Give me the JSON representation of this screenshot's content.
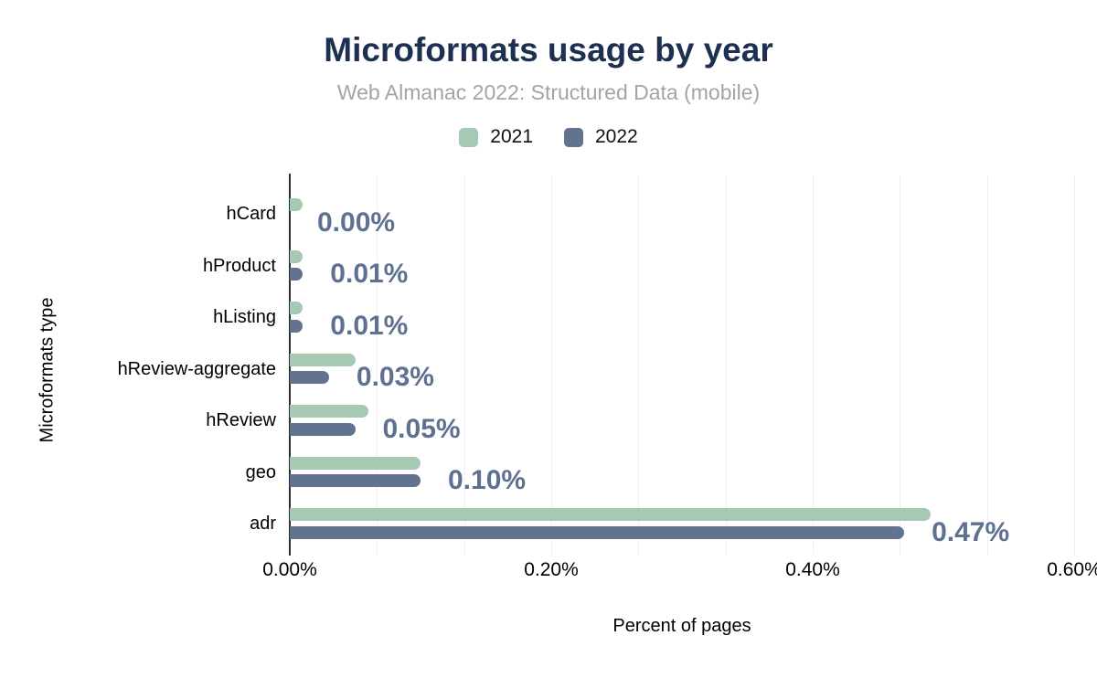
{
  "title": "Microformats usage by year",
  "subtitle": "Web Almanac 2022: Structured Data (mobile)",
  "legend": {
    "items": [
      {
        "label": "2021",
        "color": "#a6c9b4"
      },
      {
        "label": "2022",
        "color": "#62738f"
      }
    ]
  },
  "chart_data": {
    "type": "bar",
    "orientation": "horizontal",
    "title": "Microformats usage by year",
    "subtitle": "Web Almanac 2022: Structured Data (mobile)",
    "categories": [
      "hCard",
      "hProduct",
      "hListing",
      "hReview-aggregate",
      "hReview",
      "geo",
      "adr"
    ],
    "series": [
      {
        "name": "2021",
        "color": "#a6c9b4",
        "values": [
          0.01,
          0.01,
          0.01,
          0.05,
          0.06,
          0.1,
          0.49
        ]
      },
      {
        "name": "2022",
        "color": "#62738f",
        "values": [
          0.0,
          0.01,
          0.01,
          0.03,
          0.05,
          0.1,
          0.47
        ]
      }
    ],
    "data_labels": {
      "series": "2022",
      "values": [
        "0.00%",
        "0.01%",
        "0.01%",
        "0.03%",
        "0.05%",
        "0.10%",
        "0.47%"
      ],
      "color": "#5e7191"
    },
    "xlabel": "Percent of pages",
    "ylabel": "Microformats type",
    "x_ticks": {
      "labels": [
        "0.00%",
        "0.20%",
        "0.40%",
        "0.60%"
      ],
      "values": [
        0,
        0.2,
        0.4,
        0.6
      ]
    },
    "xlim": [
      0,
      0.6
    ],
    "grid": {
      "vertical_minor_intervals": 9,
      "color": "#efefef"
    },
    "legend_position": "top"
  },
  "colors": {
    "background": "#ffffff",
    "title": "#1e3051",
    "subtitle": "#a4a4a4",
    "axis_line": "#2f2f2f",
    "grid": "#efefef",
    "series_2021": "#a6c9b4",
    "series_2022": "#62738f",
    "data_label": "#5e7191",
    "text": "#000000"
  }
}
